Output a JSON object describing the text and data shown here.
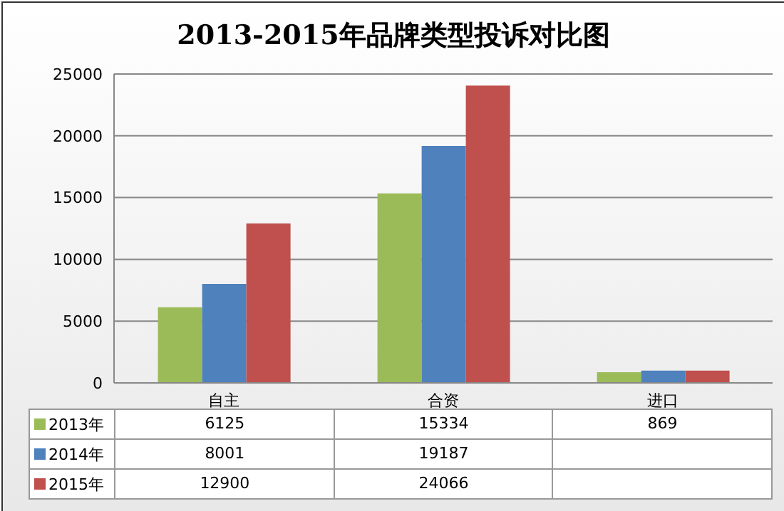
{
  "chart_data": {
    "type": "bar",
    "title": "2013-2015年品牌类型投诉对比图",
    "categories": [
      "自主",
      "合资",
      "进口"
    ],
    "series": [
      {
        "name": "2013年",
        "color": "#9bbb59",
        "values": [
          6125,
          15334,
          869
        ],
        "value_labels": [
          "6125",
          "15334",
          "869"
        ]
      },
      {
        "name": "2014年",
        "color": "#4f81bd",
        "values": [
          8001,
          19187,
          1000
        ],
        "value_labels": [
          "8001",
          "19187",
          null
        ]
      },
      {
        "name": "2015年",
        "color": "#c0504d",
        "values": [
          12900,
          24066,
          1000
        ],
        "value_labels": [
          "12900",
          "24066",
          null
        ]
      }
    ],
    "ylim": [
      0,
      25000
    ],
    "yticks": [
      0,
      5000,
      10000,
      15000,
      20000,
      25000
    ],
    "grid": "y",
    "legend": "bottom"
  }
}
